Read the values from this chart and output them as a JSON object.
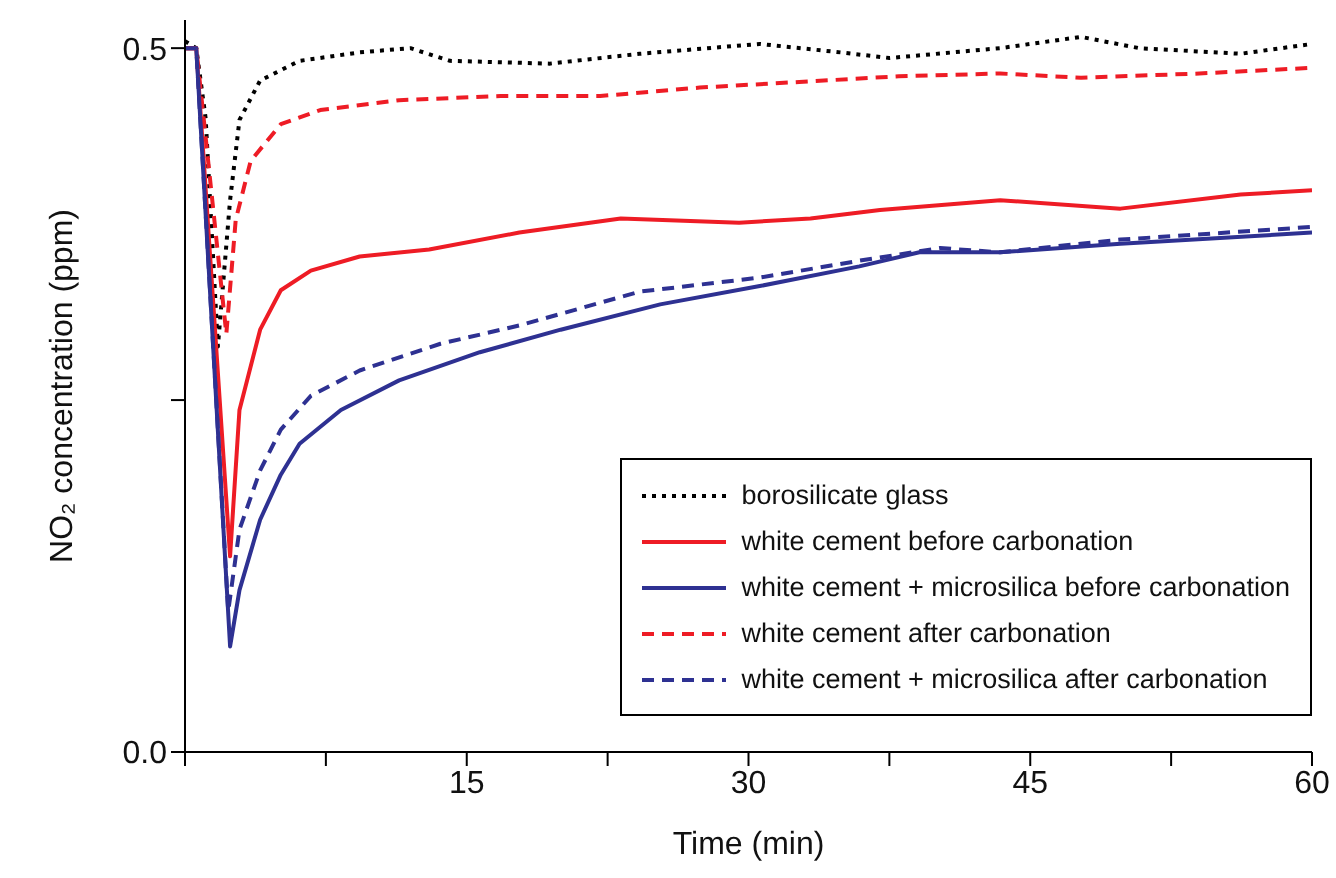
{
  "chart_data": {
    "type": "line",
    "xlabel": "Time (min)",
    "ylabel": "NO₂ concentration (ppm)",
    "xlim": [
      0,
      60
    ],
    "ylim": [
      0,
      0.52
    ],
    "xticks": [
      {
        "value": 0,
        "label": null
      },
      {
        "value": 7.5,
        "label": null
      },
      15,
      {
        "value": 22.5,
        "label": null
      },
      30,
      {
        "value": 37.5,
        "label": null
      },
      45,
      {
        "value": 52.5,
        "label": null
      },
      60
    ],
    "yticks": [
      {
        "value": 0,
        "label": "0.0"
      },
      {
        "value": 0.25,
        "label": null
      },
      0.5
    ],
    "legend": "bottom right",
    "marker": "none",
    "series": [
      {
        "name": "borosilicate glass",
        "color": "#000000",
        "line_style": "dotted",
        "x": [
          0,
          0.6,
          1.1,
          1.75,
          2.4,
          2.9,
          4,
          6.1,
          9.3,
          12,
          14.1,
          19.4,
          24.2,
          30.6,
          34.9,
          37.5,
          43.4,
          47.7,
          50.8,
          56.2,
          60
        ],
        "values": [
          0.505,
          0.5,
          0.45,
          0.288,
          0.392,
          0.449,
          0.477,
          0.491,
          0.497,
          0.5,
          0.491,
          0.489,
          0.496,
          0.503,
          0.497,
          0.493,
          0.5,
          0.508,
          0.5,
          0.496,
          0.503
        ]
      },
      {
        "name": "white cement before carbonation",
        "color": "#ee1c25",
        "line_style": "solid",
        "x": [
          0,
          0.6,
          2.4,
          2.9,
          4,
          5.1,
          6.7,
          9.3,
          13,
          17.8,
          23.2,
          29.5,
          33.3,
          37,
          43.4,
          49.8,
          56.2,
          60
        ],
        "values": [
          0.5,
          0.5,
          0.139,
          0.243,
          0.3,
          0.328,
          0.342,
          0.352,
          0.357,
          0.369,
          0.379,
          0.376,
          0.379,
          0.385,
          0.392,
          0.386,
          0.396,
          0.399
        ]
      },
      {
        "name": "white cement + microsilica before carbonation",
        "color": "#2e3192",
        "line_style": "solid",
        "x": [
          0,
          0.6,
          2.4,
          2.9,
          4,
          5.1,
          6.1,
          8.3,
          11.4,
          15.7,
          20,
          25.3,
          30.6,
          35.9,
          39.1,
          43.4,
          49.8,
          60
        ],
        "values": [
          0.5,
          0.5,
          0.075,
          0.115,
          0.165,
          0.197,
          0.219,
          0.243,
          0.264,
          0.284,
          0.3,
          0.318,
          0.331,
          0.345,
          0.355,
          0.355,
          0.361,
          0.369
        ]
      },
      {
        "name": "white cement after carbonation",
        "color": "#ee1c25",
        "line_style": "dashed",
        "x": [
          0,
          0.6,
          2.2,
          2.7,
          3.5,
          5.1,
          7.2,
          11.4,
          16.8,
          22.1,
          27.4,
          32.7,
          38,
          43.4,
          47.7,
          54,
          60
        ],
        "values": [
          0.5,
          0.5,
          0.297,
          0.378,
          0.42,
          0.446,
          0.456,
          0.463,
          0.466,
          0.466,
          0.472,
          0.476,
          0.48,
          0.482,
          0.479,
          0.482,
          0.486
        ]
      },
      {
        "name": "white cement + microsilica after carbonation",
        "color": "#2e3192",
        "line_style": "dashed",
        "x": [
          0,
          0.6,
          2.3,
          2.9,
          4,
          5.1,
          6.7,
          9.3,
          13.6,
          17.8,
          24.2,
          30.6,
          35.9,
          40.2,
          43.4,
          49.8,
          60
        ],
        "values": [
          0.5,
          0.5,
          0.1,
          0.158,
          0.2,
          0.229,
          0.253,
          0.271,
          0.29,
          0.303,
          0.327,
          0.337,
          0.349,
          0.358,
          0.355,
          0.364,
          0.373
        ]
      }
    ]
  }
}
